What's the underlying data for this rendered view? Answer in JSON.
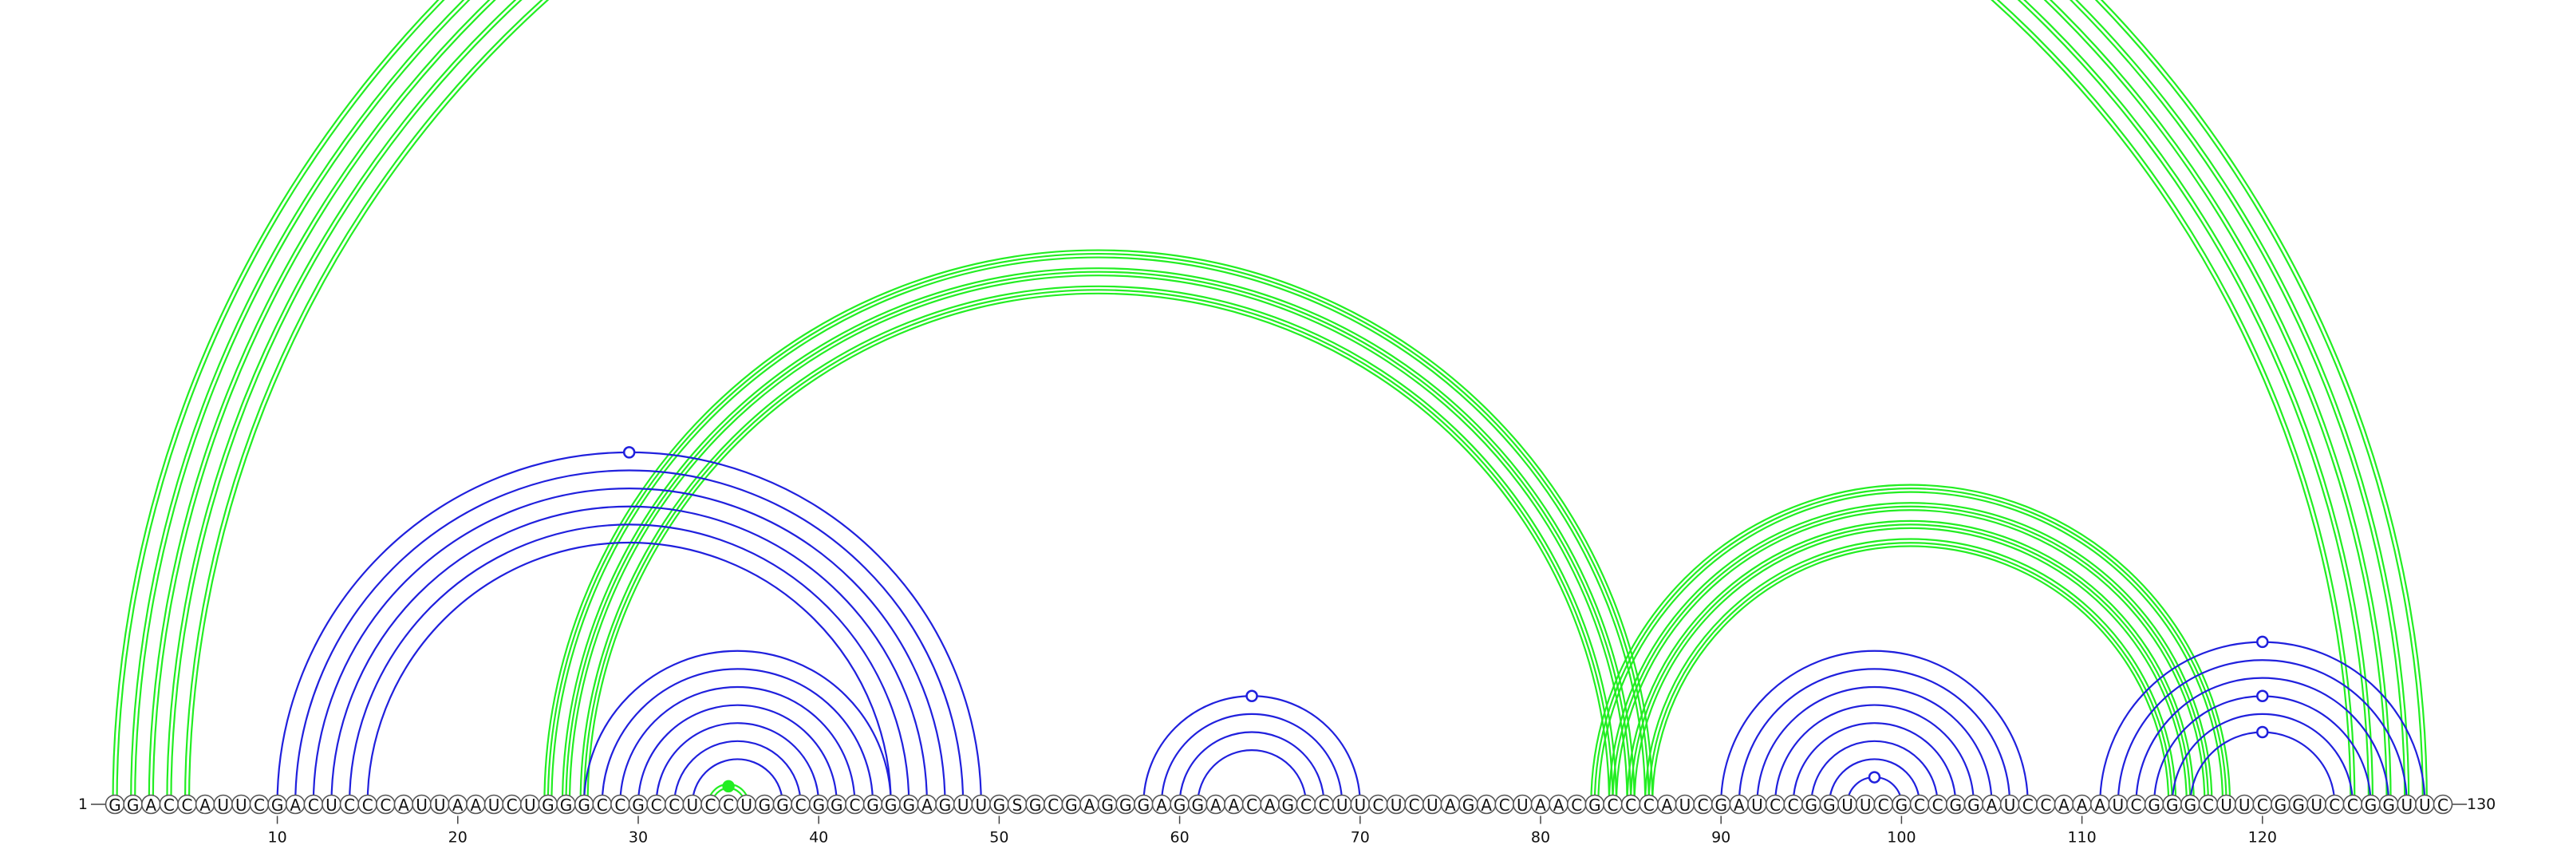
{
  "diagram": {
    "type": "rna_arc_diagram",
    "sequence": "GGACCAUUCGACUCCCAUUAAUCUGGGCCGCCUCCUGGCGGCGGGAGUUGSGCGAGGGAGGAACAGCCUUCUCUAGACUAACGCCCAUCGAUCCGGUUCGCCGGAUCCAAAUCGGGCUUCGGUCCGGUUC",
    "start_label": "1",
    "end_label": "130",
    "ticks": [
      "10",
      "20",
      "30",
      "40",
      "50",
      "60",
      "70",
      "80",
      "90",
      "100",
      "110",
      "120"
    ],
    "colors": {
      "green": "#22ee22",
      "blue": "#2020dd",
      "circle_stroke": "#555555"
    },
    "helices": [
      {
        "color": "green",
        "lines": 2,
        "pairs": [
          [
            1,
            129
          ],
          [
            2,
            128
          ],
          [
            3,
            127
          ],
          [
            4,
            126
          ],
          [
            5,
            125
          ]
        ]
      },
      {
        "color": "green",
        "lines": 3,
        "pairs": [
          [
            25,
            86
          ],
          [
            26,
            85
          ],
          [
            27,
            84
          ]
        ]
      },
      {
        "color": "green",
        "lines": 3,
        "pairs": [
          [
            83,
            118
          ],
          [
            84,
            117
          ],
          [
            85,
            116
          ],
          [
            86,
            115
          ]
        ]
      },
      {
        "color": "green",
        "lines": 2,
        "pairs": [
          [
            34,
            36
          ]
        ]
      },
      {
        "color": "blue",
        "lines": 1,
        "pairs": [
          [
            10,
            49
          ],
          [
            11,
            48
          ],
          [
            12,
            47
          ],
          [
            13,
            46
          ],
          [
            14,
            45
          ],
          [
            15,
            44
          ]
        ]
      },
      {
        "color": "blue",
        "lines": 1,
        "pairs": [
          [
            27,
            44
          ],
          [
            28,
            43
          ],
          [
            29,
            42
          ],
          [
            30,
            41
          ],
          [
            31,
            40
          ],
          [
            32,
            39
          ],
          [
            33,
            38
          ]
        ]
      },
      {
        "color": "blue",
        "lines": 1,
        "pairs": [
          [
            58,
            70
          ],
          [
            59,
            69
          ],
          [
            60,
            68
          ],
          [
            61,
            67
          ]
        ]
      },
      {
        "color": "blue",
        "lines": 1,
        "pairs": [
          [
            90,
            107
          ],
          [
            91,
            106
          ],
          [
            92,
            105
          ],
          [
            93,
            104
          ],
          [
            94,
            103
          ],
          [
            95,
            102
          ],
          [
            96,
            101
          ],
          [
            97,
            100
          ]
        ]
      },
      {
        "color": "blue",
        "lines": 1,
        "pairs": [
          [
            111,
            129
          ],
          [
            112,
            128
          ],
          [
            113,
            127
          ],
          [
            114,
            126
          ],
          [
            115,
            125
          ],
          [
            116,
            124
          ]
        ]
      }
    ],
    "markers": [
      {
        "color": "green",
        "filled": false,
        "i": 1,
        "j": 129
      },
      {
        "color": "blue",
        "filled": false,
        "i": 10,
        "j": 49
      },
      {
        "color": "green",
        "filled": true,
        "i": 34,
        "j": 36
      },
      {
        "color": "blue",
        "filled": false,
        "i": 58,
        "j": 70
      },
      {
        "color": "blue",
        "filled": false,
        "i": 97,
        "j": 100
      },
      {
        "color": "blue",
        "filled": false,
        "i": 111,
        "j": 129
      },
      {
        "color": "blue",
        "filled": false,
        "i": 114,
        "j": 126
      },
      {
        "color": "blue",
        "filled": false,
        "i": 116,
        "j": 124
      }
    ]
  }
}
